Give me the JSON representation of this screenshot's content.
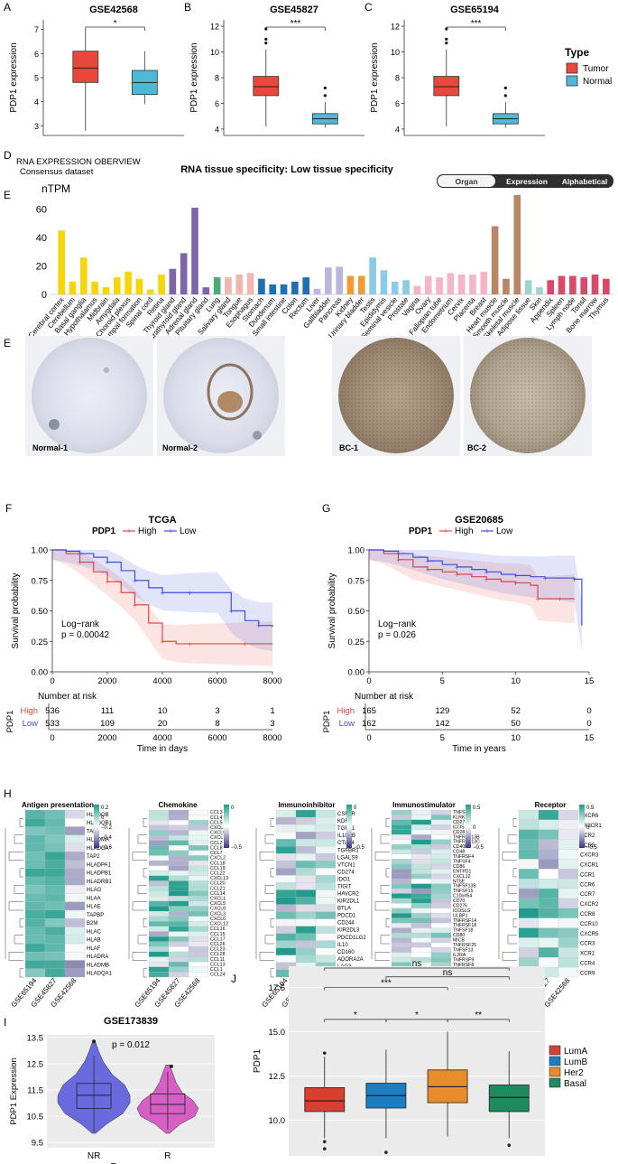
{
  "colors": {
    "tumor": "#e8473c",
    "normal": "#4fb8d6",
    "high": "#e8473c",
    "low": "#3a4fe0",
    "heat_low": "#35347f",
    "heat_mid": "#ffffff",
    "heat_high": "#1f9c8b",
    "nr": "#6a6adf",
    "r": "#d65fc6",
    "luma": "#d64031",
    "lumb": "#1b7ec2",
    "her2": "#e88b2b",
    "basal": "#1f8a5c"
  },
  "panel_a": {
    "letter": "A",
    "legend_title": "Type",
    "legend_items": [
      "Tumor",
      "Normal"
    ],
    "plots": [
      {
        "letter": "A",
        "title": "GSE42568",
        "sig": "*",
        "ylabel": "PDP1 expression",
        "ticks": [
          "3",
          "4",
          "5",
          "6",
          "7"
        ],
        "tumor": {
          "min": 2.8,
          "q1": 4.8,
          "med": 5.4,
          "q3": 6.1,
          "max": 7.0,
          "outliers": []
        },
        "normal": {
          "min": 3.9,
          "q1": 4.3,
          "med": 4.8,
          "q3": 5.3,
          "max": 6.1,
          "outliers": []
        },
        "ylim": [
          2.6,
          7.4
        ]
      },
      {
        "letter": "B",
        "title": "GSE45827",
        "sig": "***",
        "ylabel": "PDP1 expression",
        "ticks": [
          "4",
          "6",
          "8",
          "10",
          "12"
        ],
        "tumor": {
          "min": 4.2,
          "q1": 6.6,
          "med": 7.3,
          "q3": 8.1,
          "max": 10.2,
          "outliers": [
            11.8,
            11.0,
            10.7
          ]
        },
        "normal": {
          "min": 4.1,
          "q1": 4.4,
          "med": 4.8,
          "q3": 5.2,
          "max": 6.1,
          "outliers": [
            7.2,
            6.6
          ]
        },
        "ylim": [
          3.5,
          12.5
        ]
      },
      {
        "letter": "C",
        "title": "GSE65194",
        "sig": "***",
        "ylabel": "PDP1 expression",
        "ticks": [
          "4",
          "6",
          "8",
          "10",
          "12"
        ],
        "tumor": {
          "min": 4.2,
          "q1": 6.6,
          "med": 7.3,
          "q3": 8.1,
          "max": 10.2,
          "outliers": [
            11.8,
            11.0,
            10.7
          ]
        },
        "normal": {
          "min": 4.1,
          "q1": 4.4,
          "med": 4.8,
          "q3": 5.2,
          "max": 6.1,
          "outliers": [
            7.2,
            6.6
          ]
        },
        "ylim": [
          3.5,
          12.5
        ]
      }
    ]
  },
  "panel_d": {
    "letter": "D",
    "header1": "RNA EXPRESSION OBERVIEW",
    "header2": "Consensus dataset",
    "title": "RNA tissue specificity: Low tissue specificity",
    "unit": "nTPM",
    "tabs": [
      "Organ",
      "Expression",
      "Alphabetical"
    ],
    "yticks": [
      "0",
      "20",
      "40",
      "60"
    ],
    "ymax": 75
  },
  "chart_data": [
    {
      "type": "bar",
      "title": "RNA tissue specificity: Low tissue specificity",
      "ylabel": "nTPM",
      "ylim": [
        0,
        75
      ],
      "categories": [
        "Cerebral cortex",
        "Cerebellum",
        "Basal ganglia",
        "Hypothalamus",
        "Midbrain",
        "Amygdala",
        "Choroid plexus",
        "Hippocampal formation",
        "Spinal cord",
        "Retina",
        "Thyroid gland",
        "Parathyroid gland",
        "Adrenal gland",
        "Pituitary gland",
        "Lung",
        "Salivary gland",
        "Tongue",
        "Esophagus",
        "Stomach",
        "Duodenum",
        "Small intestine",
        "Colon",
        "Rectum",
        "Liver",
        "Gallbladder",
        "Pancreas",
        "Kidney",
        "Urinary bladder",
        "Testis",
        "Epididymis",
        "Seminal vesicle",
        "Prostate",
        "Vagina",
        "Ovary",
        "Fallopian tube",
        "Endometrium",
        "Cervix",
        "Placenta",
        "Breast",
        "Heart muscle",
        "Smooth muscle",
        "Skeletal muscle",
        "Adipose tissue",
        "Skin",
        "Appendix",
        "Spleen",
        "Lymph node",
        "Tonsil",
        "Bone marrow",
        "Thymus"
      ],
      "values": [
        45,
        9,
        26,
        9,
        5,
        12,
        16,
        11,
        3.5,
        14,
        18,
        29,
        61,
        5,
        12,
        12,
        14,
        15,
        11,
        7,
        7,
        9,
        12,
        4,
        19,
        19.5,
        13,
        13,
        26,
        17,
        9,
        10,
        6,
        13,
        12,
        15,
        14,
        14,
        16,
        48,
        11,
        70,
        10,
        5,
        10,
        13,
        13,
        12,
        14,
        11
      ],
      "colors": [
        "#f5d60a",
        "#f5d60a",
        "#f5d60a",
        "#f5d60a",
        "#f5d60a",
        "#f5d60a",
        "#f5d60a",
        "#f5d60a",
        "#f5d60a",
        "#f5d60a",
        "#7e65a8",
        "#7e65a8",
        "#7e65a8",
        "#7e65a8",
        "#4fa87a",
        "#f0b6b0",
        "#f0b6b0",
        "#f0b6b0",
        "#1f6fb5",
        "#1f6fb5",
        "#1f6fb5",
        "#1f6fb5",
        "#1f6fb5",
        "#b7b6dd",
        "#b7b6dd",
        "#b7b6dd",
        "#f29a33",
        "#f29a33",
        "#8ccbe5",
        "#8ccbe5",
        "#8ccbe5",
        "#8ccbe5",
        "#f4b6c7",
        "#f4b6c7",
        "#f4b6c7",
        "#f4b6c7",
        "#f4b6c7",
        "#f4b6c7",
        "#f4b6c7",
        "#b78766",
        "#b78766",
        "#b78766",
        "#9fd4cc",
        "#9fd4cc",
        "#d9496a",
        "#d9496a",
        "#d9496a",
        "#d9496a",
        "#d9496a",
        "#d9496a"
      ]
    },
    {
      "type": "line",
      "title": "TCGA",
      "xlabel": "Time in days",
      "ylabel": "Survival probability",
      "xlim": [
        0,
        8000
      ],
      "ylim": [
        0,
        1
      ],
      "series": [
        {
          "name": "High",
          "x": [
            0,
            500,
            1000,
            1500,
            2000,
            2500,
            3000,
            3500,
            4000,
            4500,
            5000,
            6000,
            7000,
            8000
          ],
          "y": [
            1,
            0.97,
            0.9,
            0.82,
            0.74,
            0.65,
            0.55,
            0.4,
            0.25,
            0.23,
            0.23,
            0.23,
            0.23,
            0.23
          ]
        },
        {
          "name": "Low",
          "x": [
            0,
            500,
            1000,
            1500,
            2000,
            2500,
            3000,
            3500,
            4000,
            4500,
            5000,
            6000,
            6500,
            7000,
            7500,
            8000
          ],
          "y": [
            1,
            0.99,
            0.97,
            0.94,
            0.9,
            0.83,
            0.75,
            0.69,
            0.65,
            0.65,
            0.65,
            0.65,
            0.5,
            0.42,
            0.38,
            0.37
          ]
        }
      ]
    },
    {
      "type": "line",
      "title": "GSE20685",
      "xlabel": "Time in years",
      "ylabel": "Survival probability",
      "xlim": [
        0,
        15
      ],
      "ylim": [
        0,
        1
      ],
      "series": [
        {
          "name": "High",
          "x": [
            0,
            1,
            2,
            3,
            4,
            5,
            6,
            7,
            8,
            9,
            10,
            11,
            11.5,
            12,
            13,
            14
          ],
          "y": [
            1,
            0.97,
            0.92,
            0.86,
            0.84,
            0.82,
            0.8,
            0.78,
            0.76,
            0.74,
            0.73,
            0.71,
            0.6,
            0.6,
            0.6,
            0.6
          ]
        },
        {
          "name": "Low",
          "x": [
            0,
            1,
            2,
            3,
            4,
            5,
            6,
            7,
            8,
            9,
            10,
            11,
            12,
            13,
            14,
            14.5
          ],
          "y": [
            1,
            0.99,
            0.97,
            0.94,
            0.91,
            0.88,
            0.86,
            0.84,
            0.82,
            0.8,
            0.79,
            0.78,
            0.77,
            0.77,
            0.76,
            0.38
          ]
        }
      ]
    }
  ],
  "panel_e": {
    "letter": "E",
    "cores": [
      "Normal-1",
      "Normal-2",
      "BC-1",
      "BC-2"
    ]
  },
  "panel_f": {
    "letter": "F",
    "title": "TCGA",
    "legend_var": "PDP1",
    "legend_high": "High",
    "legend_low": "Low",
    "logrank": "Log−rank",
    "pval": "p = 0.00042",
    "xlabel": "Time in days",
    "ylabel": "Survival probability",
    "xticks": [
      "0",
      "2000",
      "4000",
      "6000",
      "8000"
    ],
    "yticks": [
      "0.00",
      "0.25",
      "0.50",
      "0.75",
      "1.00"
    ],
    "risk_title": "Number at risk",
    "risk_var": "PDP1",
    "risk_high_label": "High",
    "risk_low_label": "Low",
    "risk_high": [
      "536",
      "111",
      "10",
      "3",
      "1"
    ],
    "risk_low": [
      "533",
      "109",
      "20",
      "8",
      "3"
    ]
  },
  "panel_g": {
    "letter": "G",
    "title": "GSE20685",
    "legend_var": "PDP1",
    "legend_high": "High",
    "legend_low": "Low",
    "logrank": "Log−rank",
    "pval": "p = 0.026",
    "xlabel": "Time in years",
    "ylabel": "Survival probability",
    "xticks": [
      "0",
      "5",
      "10",
      "15"
    ],
    "yticks": [
      "0.00",
      "0.25",
      "0.50",
      "0.75",
      "1.00"
    ],
    "risk_title": "Number at risk",
    "risk_var": "PDP1",
    "risk_high_label": "High",
    "risk_low_label": "Low",
    "risk_high": [
      "165",
      "129",
      "52",
      "0"
    ],
    "risk_low": [
      "162",
      "142",
      "50",
      "0"
    ]
  },
  "panel_h": {
    "letter": "H",
    "datasets": [
      "GSE65194",
      "GSE45827",
      "GSE42568"
    ],
    "heatmaps": [
      {
        "title": "Antigen presentation",
        "scale": [
          "0.2",
          "0",
          "−0.2",
          "−0.4",
          "−0.6"
        ],
        "genes": [
          "HLADOB",
          "HLADQB1",
          "TAP1",
          "HLADMA",
          "HLADOA",
          "TAP2",
          "HLADPA1",
          "HLADPB1",
          "HLADRB1",
          "HLAG",
          "HLAA",
          "HLAE",
          "TAPBP",
          "B2M",
          "HLAC",
          "HLAB",
          "HLAF",
          "HLADRA",
          "HLADMB",
          "HLADQA1"
        ]
      },
      {
        "title": "Chemokine",
        "scale": [
          "0",
          "−0.5"
        ],
        "genes": [
          "CCL3",
          "CCL4",
          "CCL5",
          "CXCL10",
          "CXCL9",
          "CXCL11",
          "CCL2",
          "CCL8",
          "CCL7",
          "CXCL2",
          "CCL18",
          "CCL19",
          "CCL22",
          "CXCL13",
          "CCL20",
          "CCL21",
          "CCL14",
          "CXCL1",
          "CXCL5",
          "CXCL8",
          "CXCL3",
          "CXCL6",
          "CXCL12",
          "CCL16",
          "CCL15",
          "CCL17",
          "CCL26",
          "CCL23",
          "CCL28",
          "CCL11",
          "CCL13",
          "CCL1",
          "CCL24"
        ]
      },
      {
        "title": "Immunoinhibitor",
        "scale": [
          "0",
          "−0.5"
        ],
        "genes": [
          "CSF1R",
          "KDR",
          "TGFB1",
          "IL10RB",
          "CTLA4",
          "TGFBR1",
          "LGALS9",
          "VTCN1",
          "CD274",
          "IDO1",
          "TIGIT",
          "HAVCR2",
          "KIR2DL1",
          "BTLA",
          "PDCD1",
          "CD244",
          "KIR2DL3",
          "PDCD1LG2",
          "IL10",
          "CD160",
          "ADORA2A",
          "LAG3",
          "CD96"
        ]
      },
      {
        "title": "Immunostimulator",
        "scale": [
          "0.5",
          "0",
          "−0.5"
        ],
        "genes": [
          "TNFSF9",
          "KLRK1",
          "CD27",
          "ICOS",
          "CD28",
          "TNFRSF13B",
          "TNFRSF13C",
          "CD40LG",
          "CD48",
          "TNFRSF4",
          "TNFSF4",
          "CD86",
          "ENTPD1",
          "CXCL12",
          "NT5E",
          "TNFSF13B",
          "TNFSF15",
          "C10orf54",
          "CD70",
          "CD276",
          "ICOSLG",
          "ULBP1",
          "TNFRSF14",
          "TNFRSF18",
          "TNFSF18",
          "CD80",
          "MICB",
          "TNFRSF25",
          "TNFSF13",
          "IL2RA",
          "TNFRSF9",
          "TNFRSF8",
          "TNFSF14",
          "TNFRSF17"
        ]
      },
      {
        "title": "Receptor",
        "scale": [
          "0.5",
          "0",
          "−0.5"
        ],
        "genes": [
          "CXCR6",
          "CX3CR1",
          "CCR2",
          "CCR5",
          "CXCR3",
          "CXCR1",
          "CCR1",
          "CCR6",
          "CCR7",
          "CXCR2",
          "CCR8",
          "CCR10",
          "CXCR5",
          "CCR3",
          "XCR1",
          "CCR4",
          "CCR9"
        ]
      }
    ]
  },
  "panel_i": {
    "letter": "I",
    "title": "GSE173839",
    "pval": "p = 0.012",
    "ylabel": "PDP1 Expression",
    "xlabel": "Response",
    "groups": [
      "NR",
      "R"
    ],
    "yticks": [
      "9.5",
      "10.5",
      "11.5",
      "12.5",
      "13.5"
    ]
  },
  "panel_j": {
    "letter": "J",
    "ylabel": "PDP1",
    "yticks": [
      "10.0",
      "12.5",
      "15.0",
      "17.5"
    ],
    "groups": [
      "LumA",
      "LumB",
      "Her2",
      "Basal"
    ],
    "sig": [
      "*",
      "*",
      "**",
      "***",
      "ns",
      "ns"
    ]
  }
}
